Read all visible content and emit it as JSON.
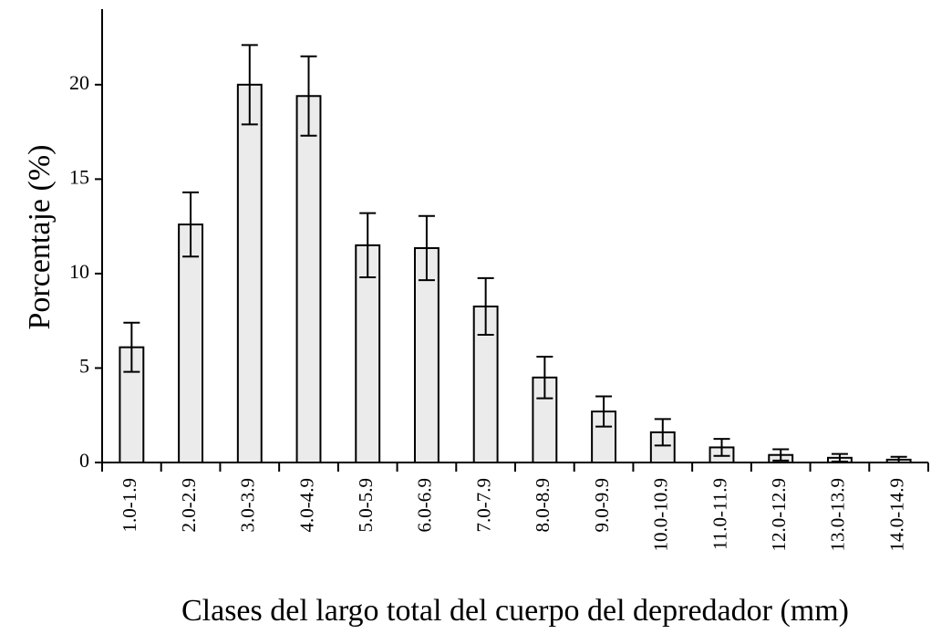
{
  "chart_data": {
    "type": "bar",
    "x_label": "Clases del largo total del cuerpo del depredador (mm)",
    "y_label": "Porcentaje (%)",
    "categories": [
      "1.0-1.9",
      "2.0-2.9",
      "3.0-3.9",
      "4.0-4.9",
      "5.0-5.9",
      "6.0-6.9",
      "7.0-7.9",
      "8.0-8.9",
      "9.0-9.9",
      "10.0-10.9",
      "11.0-11.9",
      "12.0-12.9",
      "13.0-13.9",
      "14.0-14.9"
    ],
    "values": [
      6.1,
      12.6,
      20.0,
      19.4,
      11.5,
      11.35,
      8.26,
      4.5,
      2.7,
      1.6,
      0.8,
      0.4,
      0.25,
      0.15
    ],
    "errors": [
      1.3,
      1.7,
      2.1,
      2.1,
      1.7,
      1.7,
      1.5,
      1.1,
      0.8,
      0.7,
      0.45,
      0.3,
      0.2,
      0.15
    ],
    "color": "#ebebeb",
    "ylim": [
      0,
      24
    ],
    "yticks": [
      0,
      5,
      10,
      15,
      20
    ],
    "grid": false
  }
}
